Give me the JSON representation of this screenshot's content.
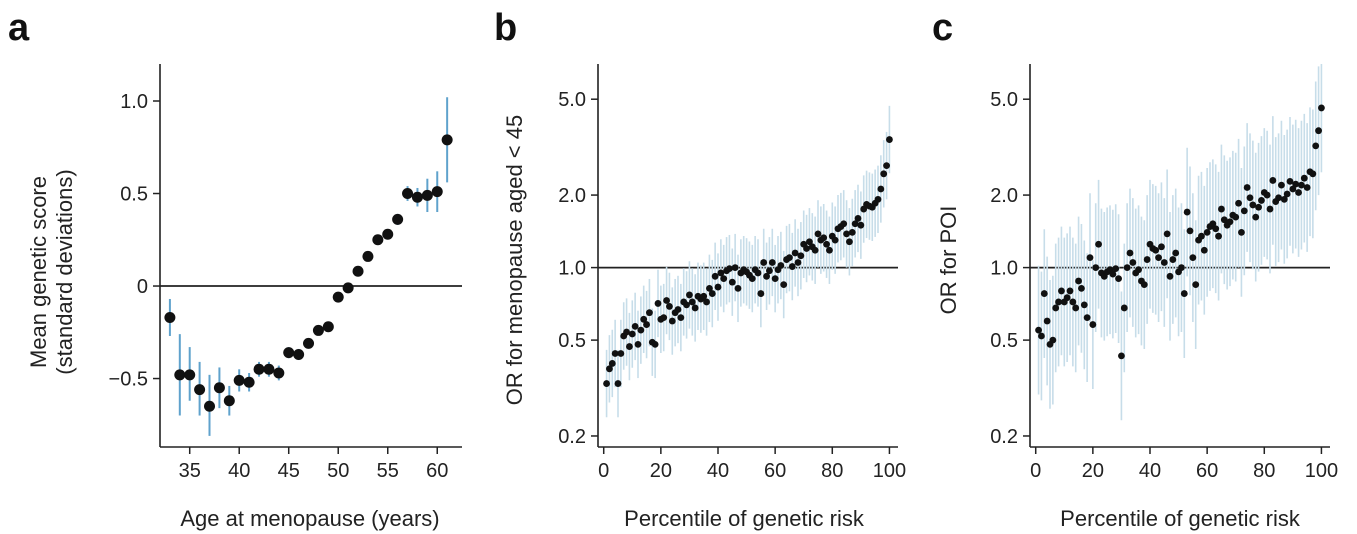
{
  "colors": {
    "errorbar": "#5fa2cc",
    "errorbar_light": "#c7dde9",
    "point": "#111111",
    "axis": "#222222"
  },
  "chart_data": [
    {
      "panel": "a",
      "type": "scatter",
      "xlabel": "Age at menopause (years)",
      "ylabel_line1": "Mean genetic score",
      "ylabel_line2": "(standard deviations)",
      "xlim": [
        32,
        62.5
      ],
      "ylim": [
        -0.87,
        1.2
      ],
      "xticks": [
        35,
        40,
        45,
        50,
        55,
        60
      ],
      "xtick_labels": [
        "35",
        "40",
        "45",
        "50",
        "55",
        "60"
      ],
      "yticks": [
        -0.5,
        0,
        0.5,
        1.0
      ],
      "ytick_labels": [
        "−0.5",
        "0",
        "0.5",
        "1.0"
      ],
      "reference_line": 0,
      "points": [
        {
          "x": 33,
          "y": -0.17,
          "lo": -0.27,
          "hi": -0.07
        },
        {
          "x": 34,
          "y": -0.48,
          "lo": -0.7,
          "hi": -0.26
        },
        {
          "x": 35,
          "y": -0.48,
          "lo": -0.62,
          "hi": -0.33
        },
        {
          "x": 36,
          "y": -0.56,
          "lo": -0.7,
          "hi": -0.41
        },
        {
          "x": 37,
          "y": -0.65,
          "lo": -0.81,
          "hi": -0.48
        },
        {
          "x": 38,
          "y": -0.55,
          "lo": -0.66,
          "hi": -0.44
        },
        {
          "x": 39,
          "y": -0.62,
          "lo": -0.7,
          "hi": -0.54
        },
        {
          "x": 40,
          "y": -0.51,
          "lo": -0.57,
          "hi": -0.45
        },
        {
          "x": 41,
          "y": -0.52,
          "lo": -0.57,
          "hi": -0.47
        },
        {
          "x": 42,
          "y": -0.45,
          "lo": -0.49,
          "hi": -0.41
        },
        {
          "x": 43,
          "y": -0.45,
          "lo": -0.49,
          "hi": -0.41
        },
        {
          "x": 44,
          "y": -0.47,
          "lo": -0.51,
          "hi": -0.43
        },
        {
          "x": 45,
          "y": -0.36,
          "lo": -0.39,
          "hi": -0.33
        },
        {
          "x": 46,
          "y": -0.37,
          "lo": -0.4,
          "hi": -0.34
        },
        {
          "x": 47,
          "y": -0.31,
          "lo": -0.33,
          "hi": -0.29
        },
        {
          "x": 48,
          "y": -0.24,
          "lo": -0.26,
          "hi": -0.22
        },
        {
          "x": 49,
          "y": -0.22,
          "lo": -0.24,
          "hi": -0.2
        },
        {
          "x": 50,
          "y": -0.06,
          "lo": -0.07,
          "hi": -0.05
        },
        {
          "x": 51,
          "y": -0.01,
          "lo": -0.02,
          "hi": 0.0
        },
        {
          "x": 52,
          "y": 0.08,
          "lo": 0.07,
          "hi": 0.09
        },
        {
          "x": 53,
          "y": 0.16,
          "lo": 0.15,
          "hi": 0.17
        },
        {
          "x": 54,
          "y": 0.25,
          "lo": 0.23,
          "hi": 0.27
        },
        {
          "x": 55,
          "y": 0.28,
          "lo": 0.26,
          "hi": 0.3
        },
        {
          "x": 56,
          "y": 0.36,
          "lo": 0.33,
          "hi": 0.39
        },
        {
          "x": 57,
          "y": 0.5,
          "lo": 0.46,
          "hi": 0.54
        },
        {
          "x": 58,
          "y": 0.48,
          "lo": 0.43,
          "hi": 0.53
        },
        {
          "x": 59,
          "y": 0.49,
          "lo": 0.4,
          "hi": 0.58
        },
        {
          "x": 60,
          "y": 0.51,
          "lo": 0.4,
          "hi": 0.62
        },
        {
          "x": 61,
          "y": 0.79,
          "lo": 0.56,
          "hi": 1.02
        }
      ]
    },
    {
      "panel": "b",
      "type": "scatter",
      "yscale": "log",
      "xlabel": "Percentile of genetic risk",
      "ylabel": "OR for menopause aged < 45",
      "xlim": [
        -2,
        103
      ],
      "ylim": [
        0.18,
        7.0
      ],
      "xticks": [
        0,
        20,
        40,
        60,
        80,
        100
      ],
      "xtick_labels": [
        "0",
        "20",
        "40",
        "60",
        "80",
        "100"
      ],
      "yticks": [
        0.2,
        0.5,
        1.0,
        2.0,
        5.0
      ],
      "ytick_labels": [
        "0.2",
        "0.5",
        "1.0",
        "2.0",
        "5.0"
      ],
      "reference_line": 1.0,
      "x": [
        1,
        2,
        3,
        4,
        5,
        6,
        7,
        8,
        9,
        10,
        11,
        12,
        13,
        14,
        15,
        16,
        17,
        18,
        19,
        20,
        21,
        22,
        23,
        24,
        25,
        26,
        27,
        28,
        29,
        30,
        31,
        32,
        33,
        34,
        35,
        36,
        37,
        38,
        39,
        40,
        41,
        42,
        43,
        44,
        45,
        46,
        47,
        48,
        49,
        50,
        51,
        52,
        53,
        54,
        55,
        56,
        57,
        58,
        59,
        60,
        61,
        62,
        63,
        64,
        65,
        66,
        67,
        68,
        69,
        70,
        71,
        72,
        73,
        74,
        75,
        76,
        77,
        78,
        79,
        80,
        81,
        82,
        83,
        84,
        85,
        86,
        87,
        88,
        89,
        90,
        91,
        92,
        93,
        94,
        95,
        96,
        97,
        98,
        99,
        100
      ],
      "y": [
        0.33,
        0.38,
        0.4,
        0.44,
        0.33,
        0.44,
        0.52,
        0.54,
        0.47,
        0.53,
        0.57,
        0.48,
        0.55,
        0.61,
        0.58,
        0.65,
        0.49,
        0.48,
        0.71,
        0.61,
        0.62,
        0.73,
        0.69,
        0.6,
        0.65,
        0.67,
        0.62,
        0.72,
        0.7,
        0.77,
        0.72,
        0.68,
        0.76,
        0.74,
        0.76,
        0.72,
        0.82,
        0.78,
        0.92,
        0.83,
        0.95,
        0.9,
        0.97,
        0.99,
        0.87,
        1.0,
        0.82,
        0.95,
        0.98,
        0.96,
        0.93,
        0.9,
        0.98,
        0.95,
        0.78,
        1.05,
        0.92,
        0.97,
        1.05,
        0.9,
        0.98,
        1.02,
        0.85,
        1.08,
        1.1,
        1.01,
        1.15,
        1.05,
        1.12,
        1.25,
        1.2,
        1.28,
        1.22,
        1.18,
        1.38,
        1.3,
        1.33,
        1.25,
        1.18,
        1.35,
        1.3,
        1.45,
        1.48,
        1.52,
        1.38,
        1.28,
        1.4,
        1.52,
        1.6,
        1.5,
        1.75,
        1.83,
        1.8,
        1.78,
        1.85,
        1.92,
        2.12,
        2.45,
        2.65,
        3.4
      ],
      "ci_factor": 1.38
    },
    {
      "panel": "c",
      "type": "scatter",
      "yscale": "log",
      "xlabel": "Percentile of genetic risk",
      "ylabel": "OR for POI",
      "xlim": [
        -2,
        103
      ],
      "ylim": [
        0.18,
        7.0
      ],
      "xticks": [
        0,
        20,
        40,
        60,
        80,
        100
      ],
      "xtick_labels": [
        "0",
        "20",
        "40",
        "60",
        "80",
        "100"
      ],
      "yticks": [
        0.2,
        0.5,
        1.0,
        2.0,
        5.0
      ],
      "ytick_labels": [
        "0.2",
        "0.5",
        "1.0",
        "2.0",
        "5.0"
      ],
      "reference_line": 1.0,
      "x": [
        1,
        2,
        3,
        4,
        5,
        6,
        7,
        8,
        9,
        10,
        11,
        12,
        13,
        14,
        15,
        16,
        17,
        18,
        19,
        20,
        21,
        22,
        23,
        24,
        25,
        26,
        27,
        28,
        29,
        30,
        31,
        32,
        33,
        34,
        35,
        36,
        37,
        38,
        39,
        40,
        41,
        42,
        43,
        44,
        45,
        46,
        47,
        48,
        49,
        50,
        51,
        52,
        53,
        54,
        55,
        56,
        57,
        58,
        59,
        60,
        61,
        62,
        63,
        64,
        65,
        66,
        67,
        68,
        69,
        70,
        71,
        72,
        73,
        74,
        75,
        76,
        77,
        78,
        79,
        80,
        81,
        82,
        83,
        84,
        85,
        86,
        87,
        88,
        89,
        90,
        91,
        92,
        93,
        94,
        95,
        96,
        97,
        98,
        99,
        100
      ],
      "y": [
        0.55,
        0.52,
        0.78,
        0.6,
        0.48,
        0.5,
        0.68,
        0.72,
        0.8,
        0.72,
        0.75,
        0.8,
        0.72,
        0.68,
        0.88,
        0.82,
        0.7,
        0.62,
        1.1,
        0.58,
        1.0,
        1.25,
        0.95,
        0.92,
        0.96,
        0.98,
        0.94,
        0.99,
        0.9,
        0.43,
        0.68,
        1.0,
        1.15,
        1.05,
        0.95,
        0.98,
        0.88,
        0.85,
        1.08,
        1.25,
        1.2,
        1.18,
        1.1,
        1.22,
        1.05,
        1.38,
        0.92,
        1.08,
        1.15,
        0.96,
        1.0,
        0.78,
        1.7,
        1.42,
        1.1,
        0.85,
        1.3,
        1.35,
        1.18,
        1.4,
        1.48,
        1.52,
        1.45,
        1.35,
        1.75,
        1.58,
        1.5,
        1.55,
        1.65,
        1.62,
        1.85,
        1.4,
        1.72,
        2.15,
        1.95,
        1.82,
        1.62,
        1.78,
        1.9,
        2.05,
        2.0,
        1.75,
        2.3,
        1.88,
        1.95,
        2.2,
        1.92,
        2.02,
        2.28,
        2.12,
        2.22,
        2.05,
        2.2,
        2.35,
        2.15,
        2.5,
        2.45,
        3.2,
        3.7,
        4.6
      ],
      "ci_factor": 1.85
    }
  ]
}
